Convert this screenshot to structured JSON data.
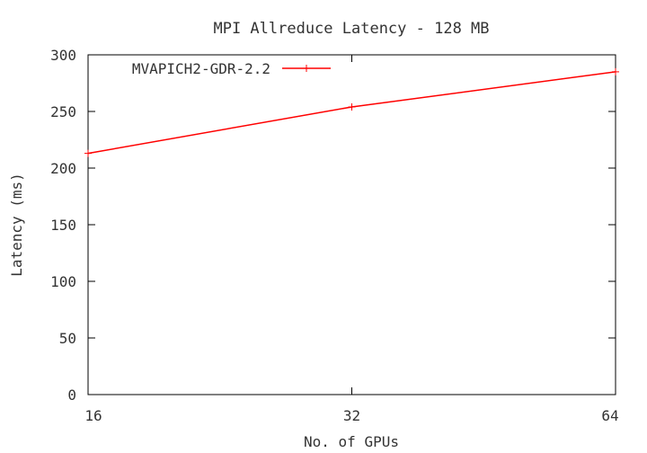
{
  "chart_data": {
    "type": "line",
    "title": "MPI Allreduce Latency - 128 MB",
    "xlabel": "No. of GPUs",
    "ylabel": "Latency (ms)",
    "x_scale": "log2",
    "x": [
      16,
      32,
      64
    ],
    "x_tick_labels": [
      "16",
      "32",
      "64"
    ],
    "ylim": [
      0,
      300
    ],
    "y_ticks": [
      0,
      50,
      100,
      150,
      200,
      250,
      300
    ],
    "y_tick_labels": [
      "0",
      "50",
      "100",
      "150",
      "200",
      "250",
      "300"
    ],
    "grid": false,
    "legend_position": "top-left",
    "series": [
      {
        "name": "MVAPICH2-GDR-2.2",
        "values": [
          213,
          254,
          285
        ],
        "color": "#ff0000",
        "marker": "plus"
      }
    ]
  }
}
